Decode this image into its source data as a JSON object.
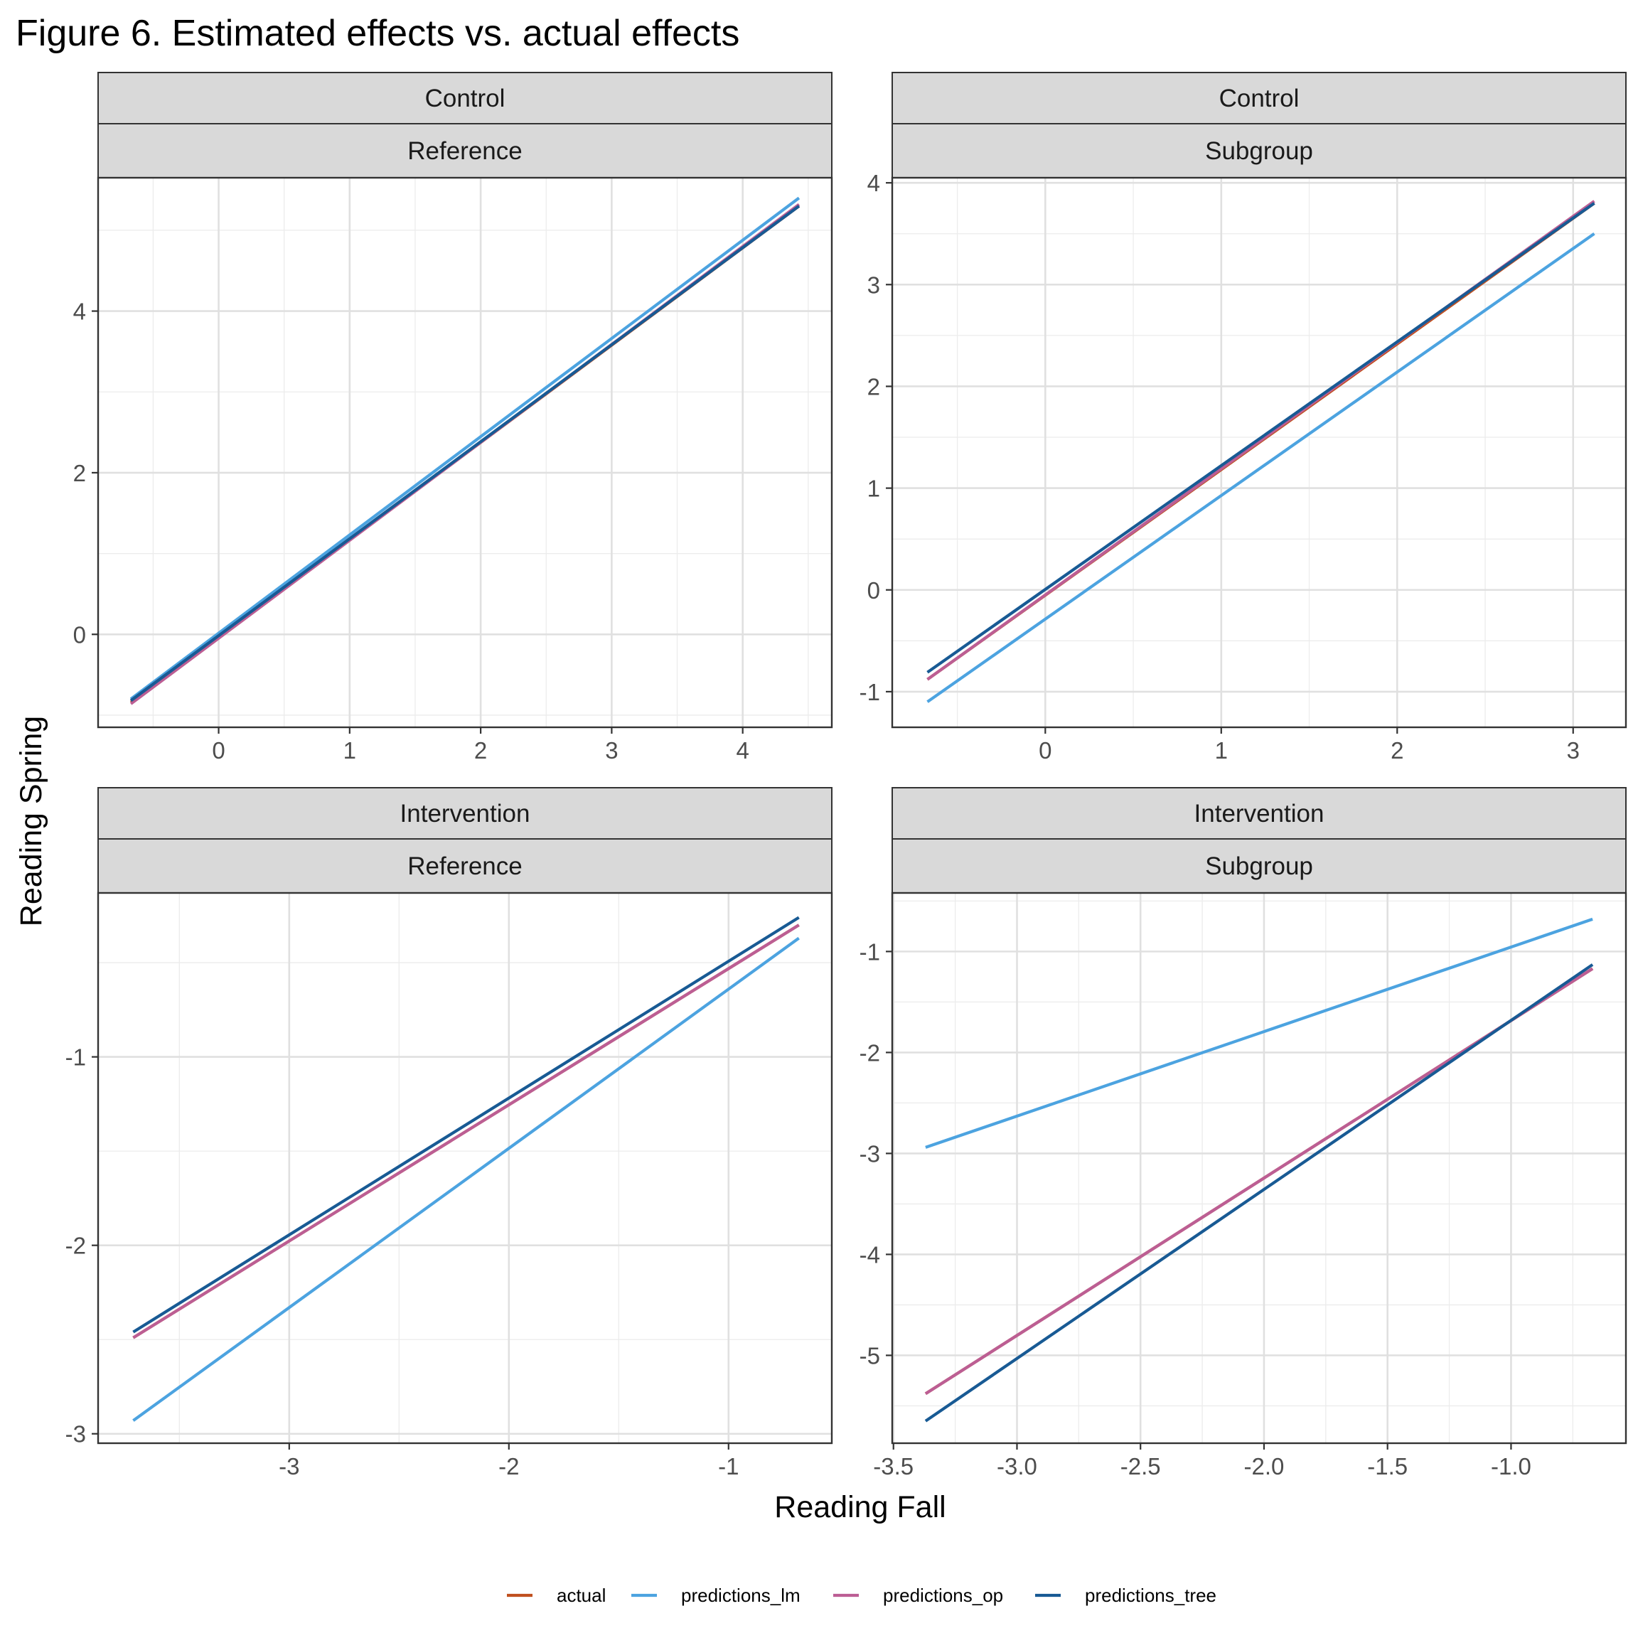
{
  "chart_data": {
    "type": "line",
    "title": "Figure 6. Estimated effects vs. actual effects",
    "xlabel": "Reading Fall",
    "ylabel": "Reading Spring",
    "colors": {
      "actual": "#C0501F",
      "predictions_lm": "#4CA3E0",
      "predictions_op": "#BC5E94",
      "predictions_tree": "#185A94"
    },
    "legend": {
      "position": "bottom",
      "entries": [
        "actual",
        "predictions_lm",
        "predictions_op",
        "predictions_tree"
      ]
    },
    "grid": true,
    "panels": [
      {
        "strip_top": "Control",
        "strip_bottom": "Reference",
        "xlim": [
          -0.92,
          4.68
        ],
        "ylim": [
          -1.15,
          5.65
        ],
        "xticks": [
          0,
          1,
          2,
          3,
          4
        ],
        "xtick_labels": [
          "0",
          "1",
          "2",
          "3",
          "4"
        ],
        "yticks": [
          0,
          2,
          4
        ],
        "ytick_labels": [
          "0",
          "2",
          "4"
        ],
        "series": [
          {
            "name": "actual",
            "x": [
              -0.67,
              4.43
            ],
            "y": [
              -0.84,
              5.3
            ]
          },
          {
            "name": "predictions_lm",
            "x": [
              -0.67,
              4.43
            ],
            "y": [
              -0.8,
              5.4
            ]
          },
          {
            "name": "predictions_op",
            "x": [
              -0.67,
              4.43
            ],
            "y": [
              -0.86,
              5.32
            ]
          },
          {
            "name": "predictions_tree",
            "x": [
              -0.67,
              4.43
            ],
            "y": [
              -0.82,
              5.3
            ]
          }
        ]
      },
      {
        "strip_top": "Control",
        "strip_bottom": "Subgroup",
        "xlim": [
          -0.87,
          3.3
        ],
        "ylim": [
          -1.35,
          4.05
        ],
        "xticks": [
          0,
          1,
          2,
          3
        ],
        "xtick_labels": [
          "0",
          "1",
          "2",
          "3"
        ],
        "yticks": [
          -1,
          0,
          1,
          2,
          3,
          4
        ],
        "ytick_labels": [
          "-1",
          "0",
          "1",
          "2",
          "3",
          "4"
        ],
        "series": [
          {
            "name": "actual",
            "x": [
              -0.67,
              3.12
            ],
            "y": [
              -0.88,
              3.8
            ]
          },
          {
            "name": "predictions_lm",
            "x": [
              -0.67,
              3.12
            ],
            "y": [
              -1.1,
              3.5
            ]
          },
          {
            "name": "predictions_op",
            "x": [
              -0.67,
              3.12
            ],
            "y": [
              -0.88,
              3.82
            ]
          },
          {
            "name": "predictions_tree",
            "x": [
              -0.67,
              3.12
            ],
            "y": [
              -0.81,
              3.8
            ]
          }
        ]
      },
      {
        "strip_top": "Intervention",
        "strip_bottom": "Reference",
        "xlim": [
          -3.87,
          -0.53
        ],
        "ylim": [
          -3.05,
          -0.13
        ],
        "xticks": [
          -3,
          -2,
          -1
        ],
        "xtick_labels": [
          "-3",
          "-2",
          "-1"
        ],
        "yticks": [
          -3,
          -2,
          -1
        ],
        "ytick_labels": [
          "-3",
          "-2",
          "-1"
        ],
        "series": [
          {
            "name": "actual",
            "x": [
              -3.71,
              -0.68
            ],
            "y": [
              -2.49,
              -0.3
            ]
          },
          {
            "name": "predictions_lm",
            "x": [
              -3.71,
              -0.68
            ],
            "y": [
              -2.93,
              -0.37
            ]
          },
          {
            "name": "predictions_op",
            "x": [
              -3.71,
              -0.68
            ],
            "y": [
              -2.49,
              -0.3
            ]
          },
          {
            "name": "predictions_tree",
            "x": [
              -3.71,
              -0.68
            ],
            "y": [
              -2.46,
              -0.26
            ]
          }
        ]
      },
      {
        "strip_top": "Intervention",
        "strip_bottom": "Subgroup",
        "xlim": [
          -3.505,
          -0.535
        ],
        "ylim": [
          -5.87,
          -0.42
        ],
        "xticks": [
          -3.5,
          -3.0,
          -2.5,
          -2.0,
          -1.5,
          -1.0
        ],
        "xtick_labels": [
          "-3.5",
          "-3.0",
          "-2.5",
          "-2.0",
          "-1.5",
          "-1.0"
        ],
        "yticks": [
          -5,
          -4,
          -3,
          -2,
          -1
        ],
        "ytick_labels": [
          "-5",
          "-4",
          "-3",
          "-2",
          "-1"
        ],
        "series": [
          {
            "name": "actual",
            "x": [
              -3.37,
              -0.67
            ],
            "y": [
              -5.38,
              -1.17
            ]
          },
          {
            "name": "predictions_lm",
            "x": [
              -3.37,
              -0.67
            ],
            "y": [
              -2.94,
              -0.68
            ]
          },
          {
            "name": "predictions_op",
            "x": [
              -3.37,
              -0.67
            ],
            "y": [
              -5.38,
              -1.17
            ]
          },
          {
            "name": "predictions_tree",
            "x": [
              -3.37,
              -0.67
            ],
            "y": [
              -5.65,
              -1.13
            ]
          }
        ]
      }
    ]
  }
}
